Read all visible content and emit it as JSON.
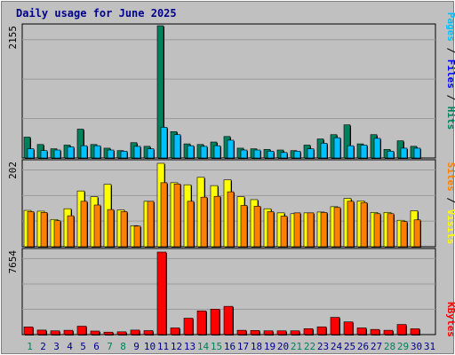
{
  "title": "Daily usage for June 2025",
  "colors": {
    "background": "#c0c0c0",
    "hits": "#00805c",
    "files": "#00c0ff",
    "pages": "#00c0ff",
    "visits": "#ffff00",
    "sites": "#ff8000",
    "kbytes": "#ff0000",
    "title": "#00008b",
    "weekend_day": "#00805c",
    "weekday": "#00008b",
    "separator": "#000000"
  },
  "right_labels": {
    "panel1": [
      {
        "text": "Pages",
        "color": "#00c0ff"
      },
      {
        "text": " / ",
        "color": "#000000"
      },
      {
        "text": "Files",
        "color": "#0000ff"
      },
      {
        "text": " / ",
        "color": "#000000"
      },
      {
        "text": "Hits",
        "color": "#00805c"
      }
    ],
    "panel2": [
      {
        "text": "Sites",
        "color": "#ff8000"
      },
      {
        "text": " / ",
        "color": "#000000"
      },
      {
        "text": "Visits",
        "color": "#ffff00"
      }
    ],
    "panel3": [
      {
        "text": "KBytes",
        "color": "#ff0000"
      }
    ]
  },
  "chart_data": [
    {
      "type": "bar",
      "title": "Daily usage for June 2025",
      "ymax_label": "2155",
      "ylim": [
        0,
        2155
      ],
      "categories": [
        "1",
        "2",
        "3",
        "4",
        "5",
        "6",
        "7",
        "8",
        "9",
        "10",
        "11",
        "12",
        "13",
        "14",
        "15",
        "16",
        "17",
        "18",
        "19",
        "20",
        "21",
        "22",
        "23",
        "24",
        "25",
        "26",
        "27",
        "28",
        "29",
        "30",
        "31"
      ],
      "series": [
        {
          "name": "Hits",
          "values": [
            340,
            220,
            150,
            210,
            470,
            220,
            160,
            120,
            250,
            190,
            2155,
            430,
            230,
            220,
            260,
            350,
            160,
            150,
            140,
            130,
            120,
            210,
            310,
            380,
            540,
            230,
            380,
            140,
            280,
            190,
            0
          ]
        },
        {
          "name": "Files",
          "values": [
            150,
            120,
            130,
            180,
            200,
            200,
            130,
            110,
            190,
            150,
            500,
            380,
            200,
            190,
            200,
            290,
            130,
            130,
            110,
            90,
            110,
            150,
            240,
            330,
            200,
            210,
            320,
            110,
            160,
            160,
            0
          ]
        },
        {
          "name": "Pages",
          "values": [
            150,
            120,
            130,
            180,
            200,
            200,
            130,
            110,
            190,
            150,
            500,
            380,
            200,
            190,
            200,
            290,
            130,
            130,
            110,
            90,
            110,
            150,
            240,
            330,
            200,
            210,
            320,
            110,
            160,
            160,
            0
          ]
        }
      ]
    },
    {
      "type": "bar",
      "ymax_label": "202",
      "ylim": [
        0,
        202
      ],
      "categories": [
        "1",
        "2",
        "3",
        "4",
        "5",
        "6",
        "7",
        "8",
        "9",
        "10",
        "11",
        "12",
        "13",
        "14",
        "15",
        "16",
        "17",
        "18",
        "19",
        "20",
        "21",
        "22",
        "23",
        "24",
        "25",
        "26",
        "27",
        "28",
        "29",
        "30",
        "31"
      ],
      "series": [
        {
          "name": "Visits",
          "values": [
            88,
            86,
            66,
            92,
            135,
            121,
            151,
            89,
            51,
            110,
            202,
            155,
            150,
            168,
            148,
            162,
            121,
            114,
            92,
            82,
            80,
            82,
            84,
            97,
            117,
            111,
            83,
            83,
            64,
            87,
            0
          ]
        },
        {
          "name": "Sites",
          "values": [
            85,
            83,
            63,
            75,
            110,
            101,
            90,
            85,
            50,
            110,
            155,
            152,
            110,
            120,
            122,
            133,
            100,
            98,
            85,
            74,
            82,
            82,
            83,
            95,
            110,
            107,
            80,
            80,
            61,
            65,
            0
          ]
        }
      ]
    },
    {
      "type": "bar",
      "ymax_label": "7654",
      "ylim": [
        0,
        7654
      ],
      "categories": [
        "1",
        "2",
        "3",
        "4",
        "5",
        "6",
        "7",
        "8",
        "9",
        "10",
        "11",
        "12",
        "13",
        "14",
        "15",
        "16",
        "17",
        "18",
        "19",
        "20",
        "21",
        "22",
        "23",
        "24",
        "25",
        "26",
        "27",
        "28",
        "29",
        "30",
        "31"
      ],
      "series": [
        {
          "name": "KBytes",
          "values": [
            710,
            420,
            350,
            400,
            780,
            330,
            230,
            260,
            420,
            370,
            7654,
            620,
            1520,
            2200,
            2360,
            2620,
            400,
            380,
            350,
            350,
            350,
            550,
            720,
            1600,
            1180,
            620,
            480,
            400,
            940,
            540,
            0
          ]
        }
      ]
    }
  ],
  "weekend_days": [
    1,
    7,
    8,
    14,
    15,
    21,
    22,
    28,
    29
  ]
}
